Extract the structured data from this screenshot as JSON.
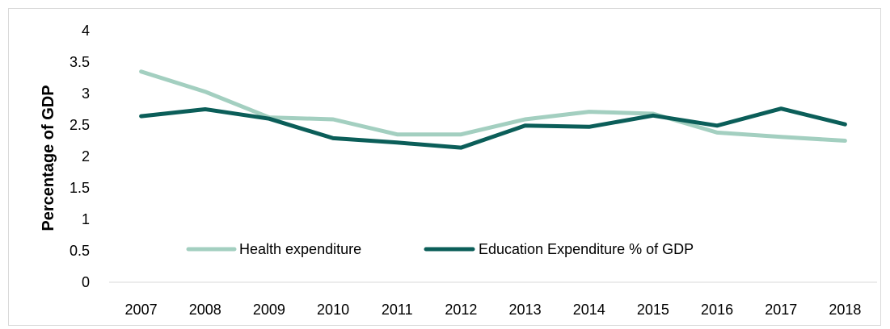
{
  "chart_data": {
    "type": "line",
    "title": "",
    "xlabel": "",
    "ylabel": "Percentage of GDP",
    "categories": [
      "2007",
      "2008",
      "2009",
      "2010",
      "2011",
      "2012",
      "2013",
      "2014",
      "2015",
      "2016",
      "2017",
      "2018"
    ],
    "ylim": [
      0,
      4
    ],
    "yticks": [
      "0",
      "0.5",
      "1",
      "1.5",
      "2",
      "2.5",
      "3",
      "3.5",
      "4"
    ],
    "grid": false,
    "legend_position": "bottom-inside",
    "series": [
      {
        "name": "Health expenditure",
        "color": "#a3cfc0",
        "values": [
          3.35,
          3.03,
          2.62,
          2.59,
          2.35,
          2.35,
          2.59,
          2.71,
          2.68,
          2.38,
          2.31,
          2.25
        ]
      },
      {
        "name": "Education Expenditure % of GDP",
        "color": "#0b5e59",
        "values": [
          2.64,
          2.75,
          2.6,
          2.29,
          2.22,
          2.14,
          2.49,
          2.47,
          2.65,
          2.49,
          2.76,
          2.51
        ]
      }
    ]
  }
}
